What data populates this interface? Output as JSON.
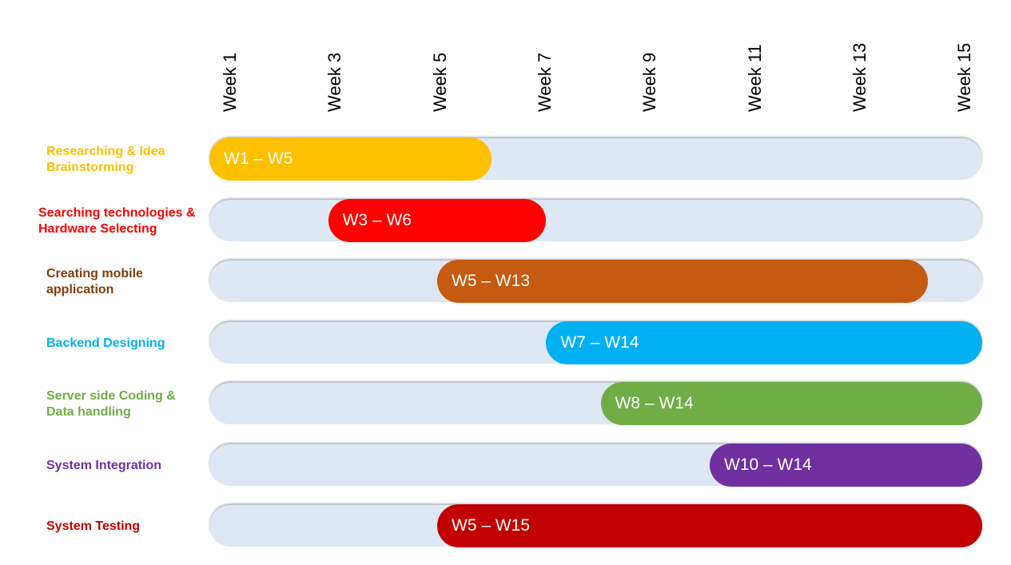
{
  "chart_data": {
    "type": "gantt",
    "weeks": [
      "Week 1",
      "Week 3",
      "Week 5",
      "Week 7",
      "Week 9",
      "Week 11",
      "Week 13",
      "Week 15"
    ],
    "tasks": [
      {
        "name": "Researching & Idea Brainstorming",
        "start": 1,
        "end": 5,
        "label": "W1 – W5",
        "color": "#ffc000",
        "label_color": "#ffc000"
      },
      {
        "name": "Searching technologies & Hardware Selecting",
        "start": 3,
        "end": 6,
        "label": "W3 – W6",
        "color": "#ff0000",
        "label_color": "#ff0000"
      },
      {
        "name": "Creating mobile application",
        "start": 5,
        "end": 13,
        "label": "W5 – W13",
        "color": "#c55a11",
        "label_color": "#843c0c"
      },
      {
        "name": "Backend Designing",
        "start": 7,
        "end": 14,
        "label": "W7 – W14",
        "color": "#00b0f0",
        "label_color": "#00b0f0"
      },
      {
        "name": "Server side Coding & Data handling",
        "start": 8,
        "end": 14,
        "label": "W8 – W14",
        "color": "#70ad47",
        "label_color": "#70ad47"
      },
      {
        "name": "System Integration",
        "start": 10,
        "end": 14,
        "label": "W10 – W14",
        "color": "#7030a0",
        "label_color": "#7030a0"
      },
      {
        "name": "System Testing",
        "start": 5,
        "end": 15,
        "label": "W5 – W15",
        "color": "#c00000",
        "label_color": "#c00000"
      }
    ],
    "track_color": "#dde8f4"
  }
}
